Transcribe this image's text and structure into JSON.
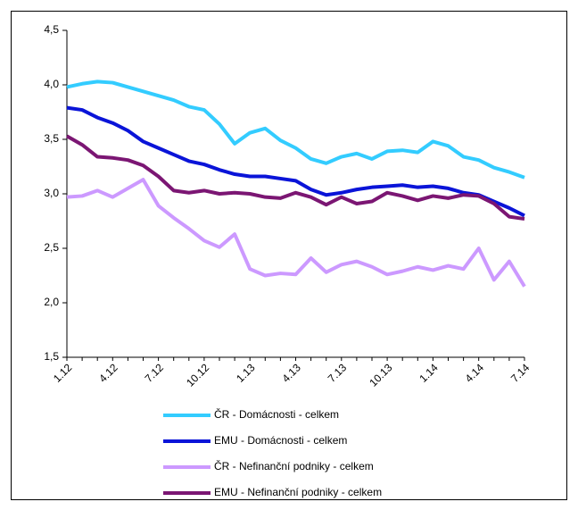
{
  "chart_data": {
    "type": "line",
    "categories": [
      "1.12",
      null,
      null,
      "4.12",
      null,
      null,
      "7.12",
      null,
      null,
      "10.12",
      null,
      null,
      "1.13",
      null,
      null,
      "4.13",
      null,
      null,
      "7.13",
      null,
      null,
      "10.13",
      null,
      null,
      "1.14",
      null,
      null,
      "4.14",
      null,
      null,
      "7.14"
    ],
    "series": [
      {
        "name": "ČR - Domácnosti - celkem",
        "color": "#33ccff",
        "values": [
          3.98,
          4.01,
          4.03,
          4.02,
          3.98,
          3.94,
          3.9,
          3.86,
          3.8,
          3.77,
          3.64,
          3.46,
          3.56,
          3.6,
          3.49,
          3.42,
          3.32,
          3.28,
          3.34,
          3.37,
          3.32,
          3.39,
          3.4,
          3.38,
          3.48,
          3.44,
          3.34,
          3.31,
          3.24,
          3.2,
          3.15
        ]
      },
      {
        "name": "EMU - Domácnosti - celkem",
        "color": "#0a14d8",
        "values": [
          3.79,
          3.77,
          3.7,
          3.65,
          3.58,
          3.48,
          3.42,
          3.36,
          3.3,
          3.27,
          3.22,
          3.18,
          3.16,
          3.16,
          3.14,
          3.12,
          3.04,
          2.99,
          3.01,
          3.04,
          3.06,
          3.07,
          3.08,
          3.06,
          3.07,
          3.05,
          3.01,
          2.99,
          2.93,
          2.87,
          2.8
        ]
      },
      {
        "name": "ČR - Nefinanční podniky - celkem",
        "color": "#cc99ff",
        "values": [
          2.97,
          2.98,
          3.03,
          2.97,
          3.05,
          3.13,
          2.89,
          2.78,
          2.68,
          2.57,
          2.51,
          2.63,
          2.31,
          2.25,
          2.27,
          2.26,
          2.41,
          2.28,
          2.35,
          2.38,
          2.33,
          2.26,
          2.29,
          2.33,
          2.3,
          2.34,
          2.31,
          2.5,
          2.21,
          2.38,
          2.15
        ]
      },
      {
        "name": "EMU - Nefinanční podniky - celkem",
        "color": "#7b1673",
        "values": [
          3.53,
          3.45,
          3.34,
          3.33,
          3.31,
          3.26,
          3.16,
          3.03,
          3.01,
          3.03,
          3.0,
          3.01,
          3.0,
          2.97,
          2.96,
          3.01,
          2.97,
          2.9,
          2.97,
          2.91,
          2.93,
          3.01,
          2.98,
          2.94,
          2.98,
          2.96,
          2.99,
          2.98,
          2.91,
          2.79,
          2.77
        ]
      }
    ],
    "ylim": [
      1.5,
      4.5
    ],
    "yticks": [
      {
        "value": 1.5,
        "label": "1,5"
      },
      {
        "value": 2.0,
        "label": "2,0"
      },
      {
        "value": 2.5,
        "label": "2,5"
      },
      {
        "value": 3.0,
        "label": "3,0"
      },
      {
        "value": 3.5,
        "label": "3,5"
      },
      {
        "value": 4.0,
        "label": "4,0"
      },
      {
        "value": 4.5,
        "label": "4,5"
      }
    ],
    "grid": false,
    "legend": "bottom"
  }
}
